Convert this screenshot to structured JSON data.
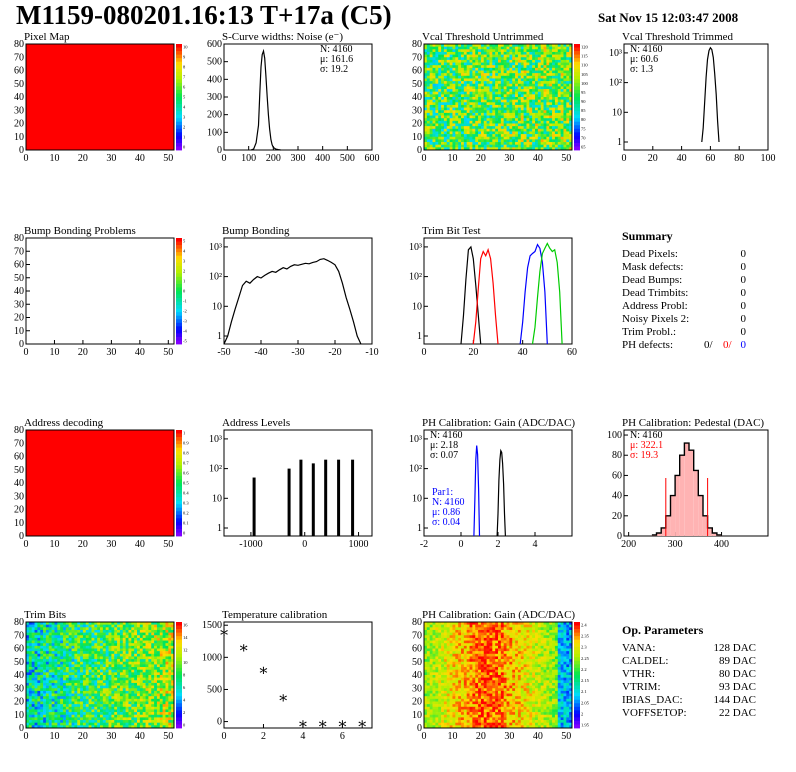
{
  "header": {
    "title": "M1159-080201.16:13 T+17a (C5)",
    "date": "Sat Nov 15 12:03:47 2008"
  },
  "colors": {
    "red": "#ff0000",
    "blue": "#0000ff",
    "green": "#00cc00",
    "black": "#000000"
  },
  "chart_data": [
    {
      "id": "pixel-map",
      "type": "heatmap",
      "title": "Pixel Map",
      "x_ticks": [
        "0",
        "10",
        "20",
        "30",
        "40",
        "50"
      ],
      "y_ticks": [
        "0",
        "10",
        "20",
        "30",
        "40",
        "50",
        "60",
        "70",
        "80"
      ],
      "xlim": [
        0,
        52
      ],
      "ylim": [
        0,
        80
      ],
      "fill": "uniform red",
      "colorbar_ticks": [
        "10",
        "9",
        "8",
        "7",
        "6",
        "5",
        "4",
        "3",
        "2",
        "1",
        "0"
      ]
    },
    {
      "id": "scurve-noise",
      "type": "line",
      "title": "S-Curve widths: Noise (e⁻)",
      "x_ticks": [
        "0",
        "100",
        "200",
        "300",
        "400",
        "500",
        "600"
      ],
      "y_ticks": [
        "0",
        "100",
        "200",
        "300",
        "400",
        "500",
        "600"
      ],
      "xlim": [
        0,
        600
      ],
      "ylim": [
        0,
        600
      ],
      "stats": [
        "N: 4160",
        "μ: 161.6",
        "σ: 19.2"
      ],
      "x": [
        110,
        120,
        130,
        140,
        145,
        150,
        155,
        160,
        165,
        170,
        175,
        180,
        185,
        190,
        195,
        200,
        210,
        220,
        230
      ],
      "y": [
        0,
        5,
        40,
        140,
        320,
        470,
        540,
        560,
        520,
        420,
        300,
        200,
        120,
        60,
        30,
        15,
        5,
        2,
        0
      ]
    },
    {
      "id": "vcal-untrimmed",
      "type": "heatmap",
      "title": "Vcal Threshold Untrimmed",
      "x_ticks": [
        "0",
        "10",
        "20",
        "30",
        "40",
        "50"
      ],
      "y_ticks": [
        "0",
        "10",
        "20",
        "30",
        "40",
        "50",
        "60",
        "70",
        "80"
      ],
      "xlim": [
        0,
        52
      ],
      "ylim": [
        0,
        80
      ],
      "colorbar_ticks": [
        "120",
        "115",
        "110",
        "105",
        "100",
        "95",
        "90",
        "85",
        "80",
        "75",
        "70",
        "65"
      ]
    },
    {
      "id": "vcal-trimmed",
      "type": "line",
      "title": "Vcal Threshold Trimmed",
      "log_y": true,
      "x_ticks": [
        "0",
        "20",
        "40",
        "60",
        "80",
        "100"
      ],
      "y_ticks": [
        "1",
        "10",
        "10²",
        "10³"
      ],
      "xlim": [
        0,
        100
      ],
      "stats": [
        "N: 4160",
        "μ: 60.6",
        "σ:  1.3"
      ],
      "x": [
        54,
        55,
        56,
        57,
        58,
        59,
        60,
        61,
        62,
        63,
        64,
        65,
        66
      ],
      "y": [
        1,
        3,
        20,
        150,
        600,
        1200,
        1500,
        1300,
        700,
        200,
        40,
        5,
        1
      ]
    },
    {
      "id": "bump-bonding-problems",
      "type": "heatmap",
      "title": "Bump Bonding Problems",
      "x_ticks": [
        "0",
        "10",
        "20",
        "30",
        "40",
        "50"
      ],
      "y_ticks": [
        "0",
        "10",
        "20",
        "30",
        "40",
        "50",
        "60",
        "70",
        "80"
      ],
      "xlim": [
        0,
        52
      ],
      "ylim": [
        0,
        80
      ],
      "fill": "empty",
      "colorbar_ticks": [
        "5",
        "4",
        "3",
        "2",
        "1",
        "0",
        "-1",
        "-2",
        "-3",
        "-4",
        "-5"
      ]
    },
    {
      "id": "bump-bonding",
      "type": "line",
      "title": "Bump Bonding",
      "log_y": true,
      "x_ticks": [
        "-50",
        "-40",
        "-30",
        "-20",
        "-10"
      ],
      "y_ticks": [
        "1",
        "10",
        "10²",
        "10³"
      ],
      "xlim": [
        -50,
        -10
      ],
      "x": [
        -50,
        -49,
        -48,
        -47,
        -46,
        -45,
        -44,
        -43,
        -42,
        -41,
        -40,
        -39,
        -38,
        -37,
        -36,
        -35,
        -34,
        -33,
        -32,
        -31,
        -30,
        -29,
        -28,
        -27,
        -26,
        -25,
        -24,
        -23,
        -22,
        -21,
        -20,
        -19,
        -18,
        -17,
        -16,
        -15,
        -14,
        -13
      ],
      "y": [
        0.5,
        1,
        3,
        8,
        20,
        50,
        70,
        60,
        80,
        100,
        90,
        110,
        130,
        150,
        140,
        170,
        200,
        180,
        220,
        250,
        240,
        260,
        280,
        270,
        300,
        320,
        380,
        400,
        350,
        300,
        250,
        150,
        60,
        20,
        8,
        3,
        1,
        0.5
      ]
    },
    {
      "id": "trim-bit-test",
      "type": "line",
      "title": "Trim Bit Test",
      "log_y": true,
      "x_ticks": [
        "0",
        "20",
        "40",
        "60"
      ],
      "y_ticks": [
        "1",
        "10",
        "10²",
        "10³"
      ],
      "xlim": [
        0,
        60
      ],
      "series": [
        {
          "color": "black",
          "x": [
            15,
            16,
            17,
            18,
            19,
            20,
            21,
            22,
            23
          ],
          "y": [
            0.5,
            5,
            80,
            800,
            1000,
            400,
            50,
            5,
            0.5
          ]
        },
        {
          "color": "red",
          "x": [
            20,
            21,
            22,
            23,
            24,
            25,
            26,
            27,
            28,
            29,
            30
          ],
          "y": [
            0.5,
            3,
            40,
            400,
            700,
            500,
            800,
            400,
            60,
            5,
            0.5
          ]
        },
        {
          "color": "blue",
          "x": [
            39,
            40,
            41,
            42,
            43,
            44,
            45,
            46,
            47,
            48,
            49,
            50
          ],
          "y": [
            0.5,
            3,
            30,
            200,
            500,
            600,
            700,
            1200,
            900,
            300,
            30,
            0.5
          ]
        },
        {
          "color": "green",
          "x": [
            44,
            45,
            46,
            47,
            48,
            49,
            50,
            51,
            52,
            53,
            54,
            55,
            56
          ],
          "y": [
            0.5,
            2,
            20,
            150,
            600,
            900,
            1300,
            900,
            700,
            800,
            300,
            30,
            0.5
          ]
        }
      ]
    },
    {
      "id": "address-decoding",
      "type": "heatmap",
      "title": "Address decoding",
      "x_ticks": [
        "0",
        "10",
        "20",
        "30",
        "40",
        "50"
      ],
      "y_ticks": [
        "0",
        "10",
        "20",
        "30",
        "40",
        "50",
        "60",
        "70",
        "80"
      ],
      "xlim": [
        0,
        52
      ],
      "ylim": [
        0,
        80
      ],
      "fill": "uniform red",
      "colorbar_ticks": [
        "1",
        "0.9",
        "0.8",
        "0.7",
        "0.6",
        "0.5",
        "0.4",
        "0.3",
        "0.2",
        "0.1",
        "0"
      ]
    },
    {
      "id": "address-levels",
      "type": "bar",
      "title": "Address Levels",
      "log_y": true,
      "x_ticks": [
        "-1000",
        "0",
        "1000"
      ],
      "y_ticks": [
        "1",
        "10",
        "10²",
        "10³"
      ],
      "xlim": [
        -1500,
        1250
      ],
      "spikes": [
        {
          "x": -950,
          "y": 50
        },
        {
          "x": -300,
          "y": 100
        },
        {
          "x": -80,
          "y": 200
        },
        {
          "x": 150,
          "y": 150
        },
        {
          "x": 380,
          "y": 200
        },
        {
          "x": 620,
          "y": 200
        },
        {
          "x": 880,
          "y": 200
        }
      ]
    },
    {
      "id": "ph-gain",
      "type": "line",
      "title": "PH Calibration: Gain (ADC/DAC)",
      "log_y": true,
      "x_ticks": [
        "-2",
        "0",
        "2",
        "4"
      ],
      "y_ticks": [
        "1",
        "10",
        "10²",
        "10³"
      ],
      "xlim": [
        -2,
        6
      ],
      "stats": [
        "N: 4160",
        "μ: 2.18",
        "σ: 0.07"
      ],
      "stats2": [
        "Par1:",
        "N: 4160",
        "μ: 0.86",
        "σ: 0.04"
      ],
      "series": [
        {
          "color": "black",
          "x": [
            1.95,
            2.0,
            2.05,
            2.1,
            2.15,
            2.2,
            2.25,
            2.3,
            2.35,
            2.4
          ],
          "y": [
            0.5,
            3,
            40,
            200,
            400,
            350,
            150,
            30,
            3,
            0.5
          ]
        },
        {
          "color": "blue",
          "x": [
            0.7,
            0.75,
            0.8,
            0.85,
            0.9,
            0.95,
            1.0
          ],
          "y": [
            0.5,
            10,
            200,
            600,
            300,
            20,
            0.5
          ]
        }
      ]
    },
    {
      "id": "ph-pedestal",
      "type": "bar",
      "title": "PH Calibration: Pedestal (DAC)",
      "x_ticks": [
        "200",
        "300",
        "400"
      ],
      "y_ticks": [
        "0",
        "20",
        "40",
        "60",
        "80",
        "100"
      ],
      "xlim": [
        190,
        500
      ],
      "ylim": [
        0,
        105
      ],
      "stats": [
        "N: 4160",
        "μ: 322.1",
        "σ: 19.3"
      ],
      "x": [
        255,
        265,
        275,
        285,
        295,
        305,
        315,
        325,
        335,
        345,
        355,
        365,
        375,
        385,
        395
      ],
      "y": [
        1,
        3,
        8,
        20,
        40,
        60,
        80,
        92,
        85,
        65,
        40,
        20,
        8,
        3,
        1
      ]
    },
    {
      "id": "trim-bits",
      "type": "heatmap",
      "title": "Trim Bits",
      "x_ticks": [
        "0",
        "10",
        "20",
        "30",
        "40",
        "50"
      ],
      "y_ticks": [
        "0",
        "10",
        "20",
        "30",
        "40",
        "50",
        "60",
        "70",
        "80"
      ],
      "xlim": [
        0,
        52
      ],
      "ylim": [
        0,
        80
      ],
      "colorbar_ticks": [
        "16",
        "14",
        "12",
        "10",
        "8",
        "6",
        "4",
        "2",
        "0"
      ]
    },
    {
      "id": "temperature-calibration",
      "type": "scatter",
      "title": "Temperature calibration",
      "x_ticks": [
        "0",
        "2",
        "4",
        "6"
      ],
      "y_ticks": [
        "0",
        "500",
        "1000",
        "1500"
      ],
      "xlim": [
        0,
        7.5
      ],
      "ylim": [
        -100,
        1550
      ],
      "x": [
        0,
        1,
        2,
        3,
        4,
        5,
        6,
        7
      ],
      "y": [
        1370,
        1130,
        780,
        350,
        -50,
        -50,
        -50,
        -50
      ]
    },
    {
      "id": "ph-gain-map",
      "type": "heatmap",
      "title": "PH Calibration: Gain (ADC/DAC)",
      "x_ticks": [
        "0",
        "10",
        "20",
        "30",
        "40",
        "50"
      ],
      "y_ticks": [
        "0",
        "10",
        "20",
        "30",
        "40",
        "50",
        "60",
        "70",
        "80"
      ],
      "xlim": [
        0,
        52
      ],
      "ylim": [
        0,
        80
      ],
      "colorbar_ticks": [
        "2.4",
        "2.35",
        "2.3",
        "2.25",
        "2.2",
        "2.15",
        "2.1",
        "2.05",
        "2",
        "1.95"
      ]
    }
  ],
  "summary": {
    "heading": "Summary",
    "rows": [
      {
        "label": "Dead Pixels:",
        "value": "0"
      },
      {
        "label": "Mask defects:",
        "value": "0"
      },
      {
        "label": "Dead Bumps:",
        "value": "0"
      },
      {
        "label": "Dead Trimbits:",
        "value": "0"
      },
      {
        "label": "Address Probl:",
        "value": "0"
      },
      {
        "label": "Noisy Pixels 2:",
        "value": "0"
      },
      {
        "label": "Trim Probl.:",
        "value": "0"
      }
    ],
    "ph_label": "PH defects:",
    "ph_values": [
      "0/",
      "0/",
      "0"
    ]
  },
  "op_params": {
    "heading": "Op. Parameters",
    "rows": [
      {
        "label": "VANA:",
        "value": "128 DAC"
      },
      {
        "label": "CALDEL:",
        "value": "89 DAC"
      },
      {
        "label": "VTHR:",
        "value": "80 DAC"
      },
      {
        "label": "VTRIM:",
        "value": "93 DAC"
      },
      {
        "label": "IBIAS_DAC:",
        "value": "144 DAC"
      },
      {
        "label": "VOFFSETOP:",
        "value": "22 DAC"
      }
    ]
  }
}
